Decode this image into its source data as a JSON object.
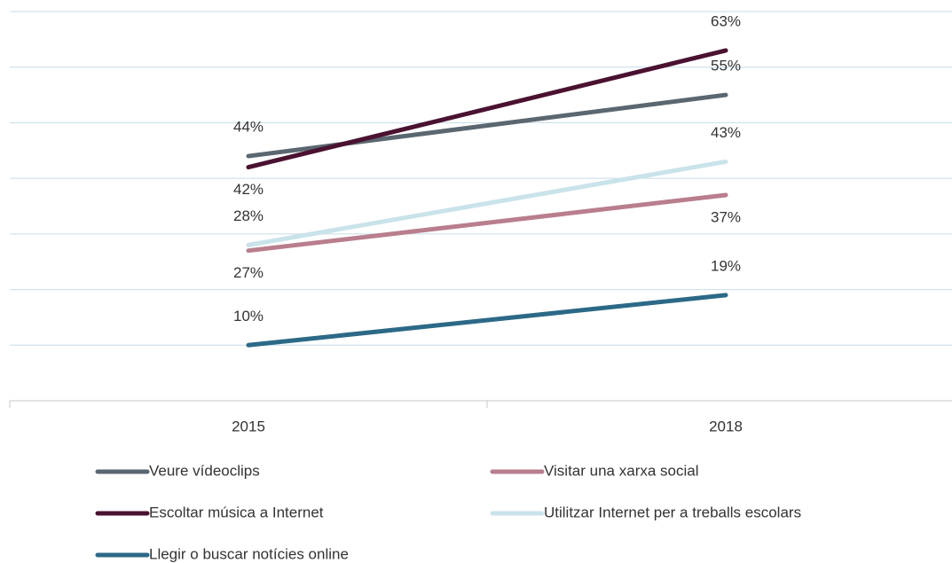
{
  "chart_data": {
    "type": "line",
    "categories": [
      "2015",
      "2018"
    ],
    "series": [
      {
        "name": "Veure vídeoclips",
        "color": "#5b6770",
        "values": [
          44,
          55
        ],
        "value_labels": [
          "44%",
          "55%"
        ]
      },
      {
        "name": "Visitar una xarxa social",
        "color": "#b97e8e",
        "values": [
          27,
          37
        ],
        "value_labels": [
          "27%",
          "37%"
        ]
      },
      {
        "name": "Escoltar música a Internet",
        "color": "#4a1230",
        "values": [
          42,
          63
        ],
        "value_labels": [
          "42%",
          "63%"
        ]
      },
      {
        "name": "Utilitzar Internet per a treballs escolars",
        "color": "#c9e3ea",
        "values": [
          28,
          43
        ],
        "value_labels": [
          "28%",
          "43%"
        ]
      },
      {
        "name": "Llegir o buscar notícies online",
        "color": "#2c6987",
        "values": [
          10,
          19
        ],
        "value_labels": [
          "10%",
          "19%"
        ]
      }
    ],
    "ylim": [
      0,
      70
    ],
    "yticks": [
      0,
      10,
      20,
      30,
      40,
      50,
      60,
      70
    ],
    "grid": true
  }
}
